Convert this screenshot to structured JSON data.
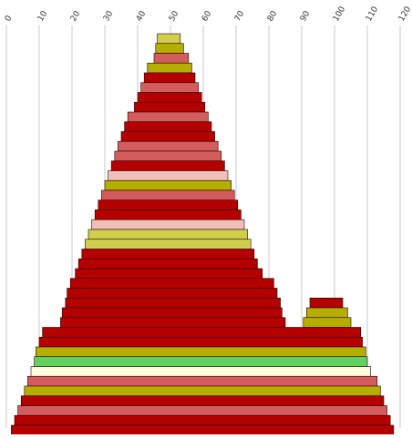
{
  "colors": {
    "dark_red": "#b50000",
    "salmon": "#d35c5c",
    "olive": "#b3ae00",
    "khaki": "#cfcf4d",
    "pink": "#f0c0b8",
    "green": "#5fd35f",
    "cream": "#fdfde0",
    "grid": "#c8c8c8",
    "stroke": "#2a0000",
    "page_background": "#ffffff"
  },
  "chart_data": {
    "type": "area",
    "title": "",
    "xlabel": "",
    "ylabel": "",
    "xlim": [
      0,
      120
    ],
    "grid": true,
    "x_ticks": [
      "0",
      "10",
      "20",
      "30",
      "40",
      "50",
      "60",
      "70",
      "80",
      "90",
      "100",
      "110",
      "120"
    ],
    "stripe_order": "top-to-bottom",
    "stripes": [
      {
        "left": 46.0,
        "right": 53.0,
        "color": "khaki"
      },
      {
        "left": 45.5,
        "right": 54.0,
        "color": "olive"
      },
      {
        "left": 45.0,
        "right": 55.5,
        "color": "salmon"
      },
      {
        "left": 43.0,
        "right": 56.5,
        "color": "olive"
      },
      {
        "left": 42.0,
        "right": 57.5,
        "color": "dark_red"
      },
      {
        "left": 41.0,
        "right": 58.5,
        "color": "salmon"
      },
      {
        "left": 40.0,
        "right": 59.5,
        "color": "dark_red"
      },
      {
        "left": 39.0,
        "right": 60.5,
        "color": "dark_red"
      },
      {
        "left": 37.0,
        "right": 61.5,
        "color": "salmon"
      },
      {
        "left": 36.0,
        "right": 62.5,
        "color": "dark_red"
      },
      {
        "left": 35.0,
        "right": 63.5,
        "color": "dark_red"
      },
      {
        "left": 34.0,
        "right": 64.5,
        "color": "salmon"
      },
      {
        "left": 33.0,
        "right": 65.5,
        "color": "salmon"
      },
      {
        "left": 32.0,
        "right": 66.5,
        "color": "dark_red"
      },
      {
        "left": 31.0,
        "right": 67.5,
        "color": "pink"
      },
      {
        "left": 30.0,
        "right": 68.5,
        "color": "olive"
      },
      {
        "left": 29.0,
        "right": 69.5,
        "color": "salmon"
      },
      {
        "left": 28.0,
        "right": 70.5,
        "color": "dark_red"
      },
      {
        "left": 27.0,
        "right": 71.5,
        "color": "dark_red"
      },
      {
        "left": 26.0,
        "right": 72.5,
        "color": "pink"
      },
      {
        "left": 25.0,
        "right": 73.5,
        "color": "khaki"
      },
      {
        "left": 24.0,
        "right": 74.5,
        "color": "khaki"
      },
      {
        "left": 23.0,
        "right": 75.5,
        "color": "dark_red"
      },
      {
        "left": 22.0,
        "right": 76.5,
        "color": "dark_red"
      },
      {
        "left": 21.0,
        "right": 78.0,
        "color": "dark_red"
      },
      {
        "left": 19.5,
        "right": 81.5,
        "color": "dark_red"
      },
      {
        "left": 18.5,
        "right": 82.5,
        "color": "dark_red"
      },
      {
        "left": 18.0,
        "right": 83.5,
        "color": "dark_red",
        "extra": [
          {
            "left": 92.5,
            "right": 102.5,
            "color": "dark_red"
          }
        ]
      },
      {
        "left": 17.0,
        "right": 84.0,
        "color": "dark_red",
        "extra": [
          {
            "left": 91.5,
            "right": 104.0,
            "color": "olive"
          }
        ]
      },
      {
        "left": 16.5,
        "right": 85.0,
        "color": "dark_red",
        "extra": [
          {
            "left": 90.5,
            "right": 105.0,
            "color": "olive"
          }
        ]
      },
      {
        "left": 11.0,
        "right": 108.0,
        "color": "dark_red"
      },
      {
        "left": 10.0,
        "right": 108.5,
        "color": "dark_red"
      },
      {
        "left": 9.0,
        "right": 109.5,
        "color": "olive"
      },
      {
        "left": 8.5,
        "right": 110.0,
        "color": "green"
      },
      {
        "left": 7.5,
        "right": 111.0,
        "color": "cream"
      },
      {
        "left": 6.5,
        "right": 113.0,
        "color": "salmon"
      },
      {
        "left": 5.5,
        "right": 114.0,
        "color": "olive"
      },
      {
        "left": 4.5,
        "right": 115.0,
        "color": "dark_red"
      },
      {
        "left": 3.5,
        "right": 116.0,
        "color": "salmon"
      },
      {
        "left": 2.5,
        "right": 117.0,
        "color": "dark_red"
      },
      {
        "left": 1.5,
        "right": 118.0,
        "color": "dark_red"
      }
    ]
  }
}
